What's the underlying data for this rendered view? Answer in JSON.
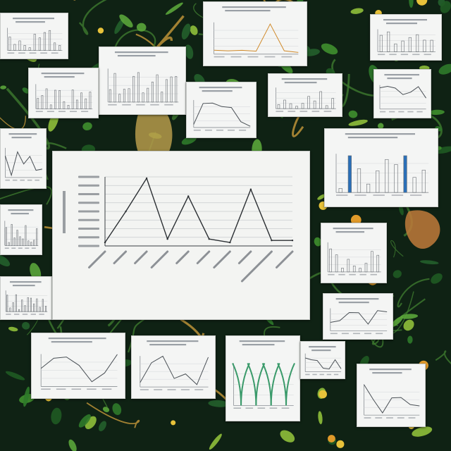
{
  "scene": {
    "colors": {
      "background": "#0f2214",
      "foliage": "#2f7a2a",
      "leaf_light": "#8fbf3a",
      "fruit": "#e09a2a",
      "card": "#f4f5f4",
      "ink": "#2b2f33",
      "accent_blue": "#2a6fb8",
      "accent_orange": "#d08a2a"
    }
  },
  "main_chart": {
    "title": "",
    "xlabel": "",
    "ylabel": ""
  },
  "chart_data": {
    "type": "line",
    "title": "",
    "xlabel": "",
    "ylabel": "",
    "x": [
      0,
      1,
      2,
      3,
      4,
      5,
      6,
      7,
      8,
      9
    ],
    "y": [
      0.05,
      0.5,
      0.98,
      0.1,
      0.72,
      0.1,
      0.05,
      0.82,
      0.08,
      0.08
    ],
    "ylim": [
      0,
      1
    ],
    "grid": true
  }
}
